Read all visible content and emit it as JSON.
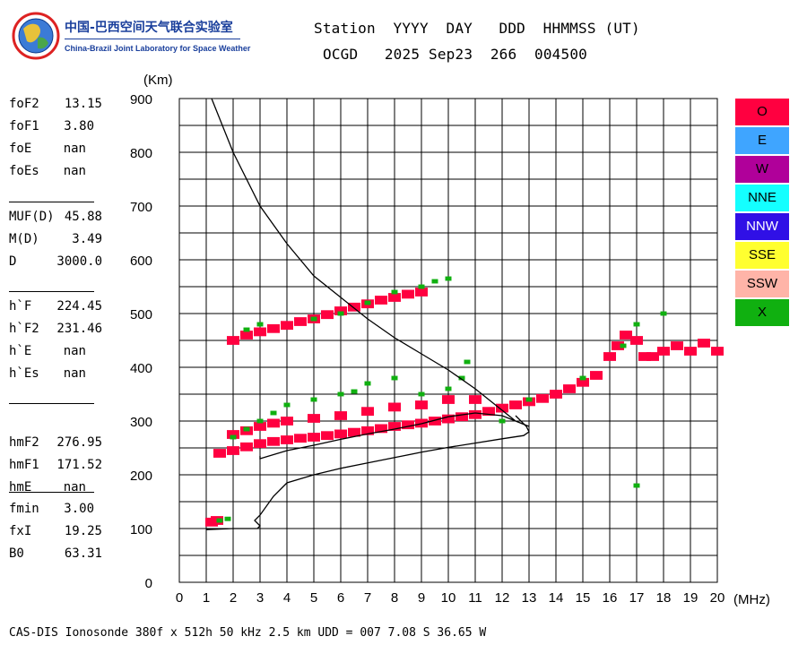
{
  "logo": {
    "title_cn": "中国-巴西空间天气联合实验室",
    "title_en": "China-Brazil Joint Laboratory for Space Weather"
  },
  "header": {
    "line1": "Station  YYYY  DAY   DDD  HHMMSS (UT)",
    "line2": "OCGD   2025 Sep23  266  004500"
  },
  "params": [
    {
      "name": "foF2",
      "value": "13.15"
    },
    {
      "name": "foF1",
      "value": "3.80"
    },
    {
      "name": "foE",
      "value": "nan"
    },
    {
      "name": "foEs",
      "value": "nan"
    },
    {
      "name": "MUF(D)",
      "value": "45.88"
    },
    {
      "name": "M(D)",
      "value": "3.49"
    },
    {
      "name": "D",
      "value": "3000.0"
    },
    {
      "name": "h`F",
      "value": "224.45"
    },
    {
      "name": "h`F2",
      "value": "231.46"
    },
    {
      "name": "h`E",
      "value": "nan"
    },
    {
      "name": "h`Es",
      "value": "nan"
    },
    {
      "name": "hmF2",
      "value": "276.95"
    },
    {
      "name": "hmF1",
      "value": "171.52"
    },
    {
      "name": "hmE",
      "value": "nan"
    },
    {
      "name": "fmin",
      "value": "3.00"
    },
    {
      "name": "fxI",
      "value": "19.25"
    },
    {
      "name": "B0",
      "value": "63.31"
    }
  ],
  "legend": [
    {
      "label": "O",
      "color": "#ff0040",
      "text_color": "#000000"
    },
    {
      "label": "E",
      "color": "#3fa5ff",
      "text_color": "#000000"
    },
    {
      "label": "W",
      "color": "#b0009a",
      "text_color": "#000000"
    },
    {
      "label": "NNE",
      "color": "#14ffff",
      "text_color": "#000000"
    },
    {
      "label": "NNW",
      "color": "#3010e6",
      "text_color": "#ffffff"
    },
    {
      "label": "SSE",
      "color": "#ffff30",
      "text_color": "#000000"
    },
    {
      "label": "SSW",
      "color": "#ffb4a8",
      "text_color": "#000000"
    },
    {
      "label": "X",
      "color": "#10b010",
      "text_color": "#000000"
    }
  ],
  "footer": "CAS-DIS Ionosonde 380f x 512h 50 kHz 2.5 km UDD = 007 7.08 S 36.65 W",
  "chart_data": {
    "type": "scatter",
    "xlabel": "(MHz)",
    "ylabel": "(Km)",
    "xlim": [
      0,
      20
    ],
    "ylim": [
      0,
      900
    ],
    "xticks": [
      "0",
      "1",
      "2",
      "3",
      "4",
      "5",
      "6",
      "7",
      "8",
      "9",
      "10",
      "11",
      "12",
      "13",
      "14",
      "15",
      "16",
      "17",
      "18",
      "19",
      "20"
    ],
    "yticks": [
      "0",
      "100",
      "200",
      "300",
      "400",
      "500",
      "600",
      "700",
      "800",
      "900"
    ],
    "grid": true,
    "legend_position": "right",
    "series": [
      {
        "name": "O",
        "color": "#ff0040",
        "points": [
          [
            1.5,
            240
          ],
          [
            2.0,
            245
          ],
          [
            2.5,
            252
          ],
          [
            3.0,
            258
          ],
          [
            3.5,
            262
          ],
          [
            4.0,
            265
          ],
          [
            4.5,
            268
          ],
          [
            5.0,
            270
          ],
          [
            5.5,
            273
          ],
          [
            6.0,
            276
          ],
          [
            6.5,
            279
          ],
          [
            7.0,
            282
          ],
          [
            7.5,
            286
          ],
          [
            8.0,
            290
          ],
          [
            8.5,
            293
          ],
          [
            9.0,
            296
          ],
          [
            9.5,
            300
          ],
          [
            10.0,
            304
          ],
          [
            10.5,
            308
          ],
          [
            11.0,
            312
          ],
          [
            11.5,
            318
          ],
          [
            12.0,
            324
          ],
          [
            12.5,
            330
          ],
          [
            13.0,
            336
          ],
          [
            13.5,
            342
          ],
          [
            14.0,
            350
          ],
          [
            14.5,
            360
          ],
          [
            15.0,
            372
          ],
          [
            15.5,
            385
          ],
          [
            16.0,
            420
          ],
          [
            16.3,
            440
          ],
          [
            16.6,
            460
          ],
          [
            17.0,
            450
          ],
          [
            17.3,
            420
          ],
          [
            17.6,
            420
          ],
          [
            18.0,
            430
          ],
          [
            18.5,
            440
          ],
          [
            19.0,
            430
          ],
          [
            19.5,
            445
          ],
          [
            20.0,
            430
          ],
          [
            2.0,
            275
          ],
          [
            2.5,
            282
          ],
          [
            3.0,
            290
          ],
          [
            3.5,
            296
          ],
          [
            4.0,
            300
          ],
          [
            5.0,
            305
          ],
          [
            6.0,
            310
          ],
          [
            7.0,
            318
          ],
          [
            8.0,
            326
          ],
          [
            9.0,
            330
          ],
          [
            10.0,
            340
          ],
          [
            11.0,
            340
          ],
          [
            2.0,
            450
          ],
          [
            2.5,
            460
          ],
          [
            3.0,
            466
          ],
          [
            3.5,
            472
          ],
          [
            4.0,
            478
          ],
          [
            4.5,
            485
          ],
          [
            5.0,
            490
          ],
          [
            5.5,
            498
          ],
          [
            6.0,
            505
          ],
          [
            6.5,
            512
          ],
          [
            7.0,
            518
          ],
          [
            7.5,
            525
          ],
          [
            8.0,
            530
          ],
          [
            8.5,
            536
          ],
          [
            9.0,
            540
          ],
          [
            1.2,
            112
          ],
          [
            1.4,
            115
          ]
        ]
      },
      {
        "name": "X",
        "color": "#10b010",
        "points": [
          [
            1.5,
            115
          ],
          [
            1.8,
            118
          ],
          [
            2.0,
            270
          ],
          [
            2.5,
            285
          ],
          [
            3.0,
            300
          ],
          [
            3.5,
            315
          ],
          [
            4.0,
            330
          ],
          [
            5.0,
            340
          ],
          [
            6.0,
            350
          ],
          [
            6.5,
            355
          ],
          [
            7.0,
            370
          ],
          [
            8.0,
            380
          ],
          [
            9.0,
            350
          ],
          [
            10.0,
            360
          ],
          [
            10.5,
            380
          ],
          [
            10.7,
            410
          ],
          [
            2.5,
            470
          ],
          [
            3.0,
            480
          ],
          [
            5.0,
            490
          ],
          [
            6.0,
            500
          ],
          [
            7.0,
            520
          ],
          [
            8.0,
            540
          ],
          [
            9.0,
            550
          ],
          [
            9.5,
            560
          ],
          [
            10.0,
            565
          ],
          [
            12.0,
            300
          ],
          [
            13.0,
            340
          ],
          [
            15.0,
            380
          ],
          [
            16.5,
            440
          ],
          [
            17.0,
            480
          ],
          [
            18.0,
            500
          ],
          [
            17.0,
            180
          ]
        ]
      },
      {
        "name": "virtual-height trace",
        "color": "#000000",
        "points": [
          [
            1.0,
            98
          ],
          [
            1.5,
            99
          ],
          [
            2.0,
            100
          ],
          [
            2.5,
            100
          ],
          [
            2.9,
            100
          ],
          [
            3.0,
            105
          ],
          [
            2.8,
            115
          ],
          [
            3.0,
            125
          ],
          [
            3.5,
            160
          ],
          [
            4.0,
            185
          ],
          [
            5.0,
            200
          ],
          [
            6.0,
            212
          ],
          [
            7.0,
            222
          ],
          [
            8.0,
            232
          ],
          [
            9.0,
            242
          ],
          [
            10.0,
            251
          ],
          [
            11.0,
            259
          ],
          [
            12.0,
            267
          ],
          [
            12.8,
            273
          ],
          [
            13.0,
            280
          ],
          [
            12.9,
            290
          ],
          [
            12.5,
            310
          ]
        ]
      },
      {
        "name": "profile curve",
        "color": "#000000",
        "points": [
          [
            1.2,
            900
          ],
          [
            2.0,
            800
          ],
          [
            3.0,
            700
          ],
          [
            4.0,
            630
          ],
          [
            5.0,
            570
          ],
          [
            6.0,
            530
          ],
          [
            7.0,
            490
          ],
          [
            8.0,
            455
          ],
          [
            9.0,
            425
          ],
          [
            10.0,
            395
          ],
          [
            11.0,
            360
          ],
          [
            12.0,
            320
          ],
          [
            12.5,
            300
          ],
          [
            13.0,
            290
          ],
          [
            12.5,
            300
          ],
          [
            12.0,
            310
          ],
          [
            11.0,
            315
          ],
          [
            10.0,
            308
          ],
          [
            9.0,
            295
          ],
          [
            8.0,
            285
          ],
          [
            7.0,
            276
          ],
          [
            6.0,
            266
          ],
          [
            5.0,
            255
          ],
          [
            4.0,
            245
          ],
          [
            3.0,
            230
          ],
          [
            3.0,
            235
          ]
        ]
      }
    ]
  }
}
